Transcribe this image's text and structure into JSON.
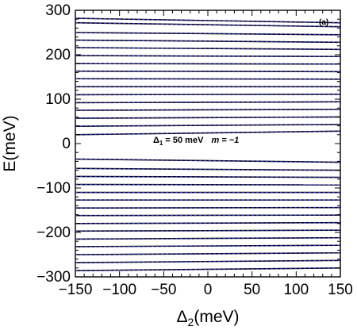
{
  "chart_data": {
    "type": "line",
    "panel_label": "(a)",
    "xlabel_main": "Δ",
    "xlabel_sub": "2",
    "xlabel_unit": "(meV)",
    "ylabel": "E(meV)",
    "xlim": [
      -150,
      150
    ],
    "ylim": [
      -300,
      300
    ],
    "xticks": [
      -150,
      -100,
      -50,
      0,
      50,
      100,
      150
    ],
    "xtick_labels": [
      "−150",
      "−100",
      "−50",
      "0",
      "50",
      "100",
      "150"
    ],
    "yticks": [
      -300,
      -200,
      -100,
      0,
      100,
      200,
      300
    ],
    "ytick_labels": [
      "−300",
      "−200",
      "−100",
      "0",
      "100",
      "200",
      "300"
    ],
    "annotation": {
      "delta_symbol": "Δ",
      "delta_sub": "1",
      "delta_value": " = 50 meV",
      "m_text": "m = −1",
      "x": -60,
      "y": 4
    },
    "colors": {
      "exact": "#000000",
      "approx": "#3030d0"
    },
    "levels": [
      {
        "y_left": 282,
        "y_right": 272
      },
      {
        "y_left": 272,
        "y_right": 263
      },
      {
        "y_left": 250,
        "y_right": 245
      },
      {
        "y_left": 233,
        "y_right": 228
      },
      {
        "y_left": 216,
        "y_right": 212
      },
      {
        "y_left": 198,
        "y_right": 196
      },
      {
        "y_left": 180,
        "y_right": 179
      },
      {
        "y_left": 163,
        "y_right": 162
      },
      {
        "y_left": 146,
        "y_right": 145
      },
      {
        "y_left": 128,
        "y_right": 128
      },
      {
        "y_left": 110,
        "y_right": 111
      },
      {
        "y_left": 92,
        "y_right": 94
      },
      {
        "y_left": 75,
        "y_right": 77
      },
      {
        "y_left": 57,
        "y_right": 60
      },
      {
        "y_left": 39,
        "y_right": 43
      },
      {
        "y_left": 20,
        "y_right": 28
      },
      {
        "y_left": -35,
        "y_right": -42
      },
      {
        "y_left": -56,
        "y_right": -60
      },
      {
        "y_left": -74,
        "y_right": -76
      },
      {
        "y_left": -92,
        "y_right": -93
      },
      {
        "y_left": -110,
        "y_right": -110
      },
      {
        "y_left": -127,
        "y_right": -127
      },
      {
        "y_left": -145,
        "y_right": -144
      },
      {
        "y_left": -162,
        "y_right": -161
      },
      {
        "y_left": -180,
        "y_right": -178
      },
      {
        "y_left": -197,
        "y_right": -195
      },
      {
        "y_left": -215,
        "y_right": -212
      },
      {
        "y_left": -232,
        "y_right": -229
      },
      {
        "y_left": -250,
        "y_right": -246
      },
      {
        "y_left": -268,
        "y_right": -263
      },
      {
        "y_left": -286,
        "y_right": -280
      }
    ]
  }
}
